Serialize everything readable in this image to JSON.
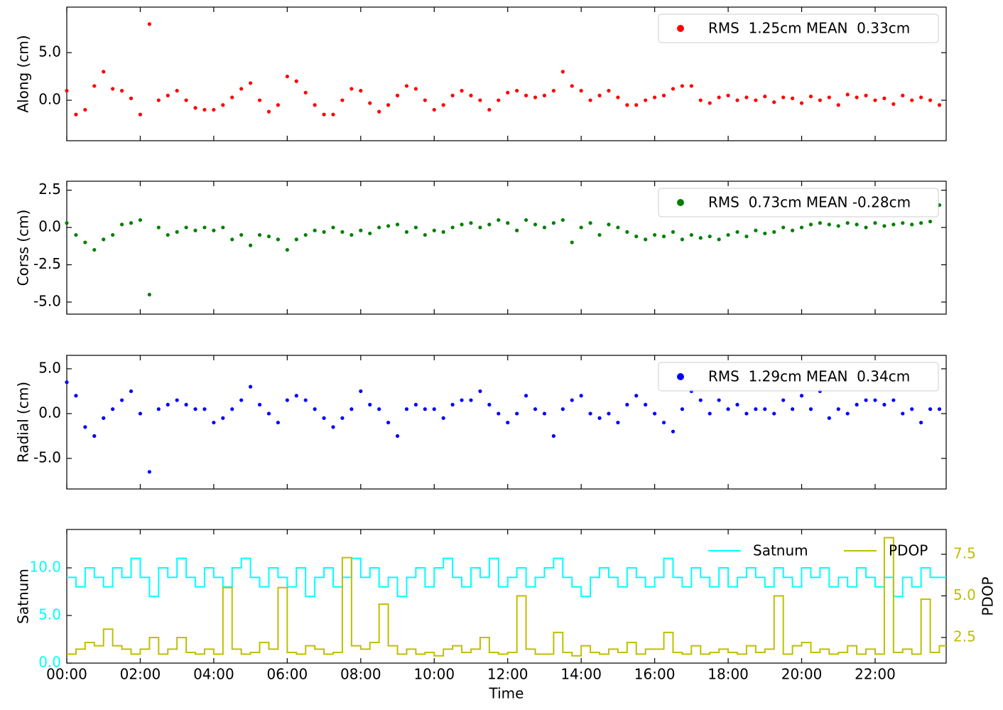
{
  "chart_data": [
    {
      "type": "scatter",
      "ylabel": "Along (cm)",
      "x": [
        0,
        15,
        30,
        45,
        60,
        75,
        90,
        105,
        120,
        135,
        150,
        165,
        180,
        195,
        210,
        225,
        240,
        255,
        270,
        285,
        300,
        315,
        330,
        345,
        360,
        375,
        390,
        405,
        420,
        435,
        450,
        465,
        480,
        495,
        510,
        525,
        540,
        555,
        570,
        585,
        600,
        615,
        630,
        645,
        660,
        675,
        690,
        705,
        720,
        735,
        750,
        765,
        780,
        795,
        810,
        825,
        840,
        855,
        870,
        885,
        900,
        915,
        930,
        945,
        960,
        975,
        990,
        1005,
        1020,
        1035,
        1050,
        1065,
        1080,
        1095,
        1110,
        1125,
        1140,
        1155,
        1170,
        1185,
        1200,
        1215,
        1230,
        1245,
        1260,
        1275,
        1290,
        1305,
        1320,
        1335,
        1350,
        1365,
        1380,
        1395,
        1410,
        1425
      ],
      "xlim": [
        0,
        1436
      ],
      "xticks": [
        0,
        120,
        240,
        360,
        480,
        600,
        720,
        840,
        960,
        1080,
        1200,
        1320
      ],
      "ylim": [
        -4.25,
        9.78
      ],
      "yticks": [
        {
          "value": 0,
          "label": "0.0"
        },
        {
          "value": 5,
          "label": "5.0"
        }
      ],
      "series": [
        {
          "name": "RMS  1.25cm MEAN  0.33cm",
          "color": "#ff0000",
          "values": [
            1.0,
            -1.5,
            -1.0,
            1.5,
            3.0,
            1.2,
            1.0,
            0.2,
            -1.5,
            8.0,
            0.0,
            0.5,
            1.0,
            0.0,
            -0.8,
            -1.0,
            -1.0,
            -0.5,
            0.3,
            1.2,
            1.8,
            0.0,
            -1.2,
            -0.5,
            2.5,
            2.0,
            0.8,
            -0.5,
            -1.5,
            -1.5,
            0.0,
            1.2,
            1.0,
            -0.3,
            -1.2,
            -0.5,
            0.5,
            1.5,
            1.2,
            0.0,
            -1.0,
            -0.5,
            0.5,
            1.0,
            0.5,
            0.0,
            -1.0,
            0.0,
            0.8,
            1.0,
            0.5,
            0.3,
            0.5,
            1.0,
            3.0,
            1.5,
            1.0,
            0.0,
            0.5,
            1.0,
            0.3,
            -0.5,
            -0.5,
            0.0,
            0.3,
            0.5,
            1.2,
            1.5,
            1.5,
            0.0,
            -0.3,
            0.3,
            0.5,
            0.0,
            0.3,
            0.0,
            0.4,
            -0.2,
            0.3,
            0.2,
            -0.3,
            0.4,
            0.0,
            0.3,
            -0.5,
            0.6,
            0.3,
            0.5,
            0.0,
            0.2,
            -0.4,
            0.5,
            0.0,
            0.3,
            0.0,
            -0.5
          ]
        }
      ]
    },
    {
      "type": "scatter",
      "ylabel": "Corss (cm)",
      "x": [
        0,
        15,
        30,
        45,
        60,
        75,
        90,
        105,
        120,
        135,
        150,
        165,
        180,
        195,
        210,
        225,
        240,
        255,
        270,
        285,
        300,
        315,
        330,
        345,
        360,
        375,
        390,
        405,
        420,
        435,
        450,
        465,
        480,
        495,
        510,
        525,
        540,
        555,
        570,
        585,
        600,
        615,
        630,
        645,
        660,
        675,
        690,
        705,
        720,
        735,
        750,
        765,
        780,
        795,
        810,
        825,
        840,
        855,
        870,
        885,
        900,
        915,
        930,
        945,
        960,
        975,
        990,
        1005,
        1020,
        1035,
        1050,
        1065,
        1080,
        1095,
        1110,
        1125,
        1140,
        1155,
        1170,
        1185,
        1200,
        1215,
        1230,
        1245,
        1260,
        1275,
        1290,
        1305,
        1320,
        1335,
        1350,
        1365,
        1380,
        1395,
        1410,
        1425
      ],
      "xlim": [
        0,
        1436
      ],
      "xticks": [
        0,
        120,
        240,
        360,
        480,
        600,
        720,
        840,
        960,
        1080,
        1200,
        1320
      ],
      "ylim": [
        -5.81,
        3.1
      ],
      "yticks": [
        {
          "value": -5,
          "label": "-5.0"
        },
        {
          "value": -2.5,
          "label": "-2.5"
        },
        {
          "value": 0,
          "label": "0.0"
        },
        2.5
      ],
      "series": [
        {
          "name": "RMS  0.73cm MEAN -0.28cm",
          "color": "#008000",
          "values": [
            0.3,
            -0.5,
            -1.0,
            -1.5,
            -0.8,
            -0.5,
            0.2,
            0.3,
            0.5,
            -4.5,
            0.0,
            -0.5,
            -0.3,
            0.0,
            -0.2,
            0.0,
            -0.2,
            0.0,
            -0.8,
            -0.5,
            -1.2,
            -0.5,
            -0.6,
            -0.8,
            -1.5,
            -0.8,
            -0.5,
            -0.2,
            -0.3,
            0.0,
            -0.3,
            -0.5,
            -0.2,
            -0.4,
            0.0,
            0.1,
            0.2,
            -0.3,
            0.0,
            -0.5,
            -0.2,
            -0.3,
            0.0,
            0.2,
            0.3,
            0.0,
            0.2,
            0.5,
            0.3,
            -0.2,
            0.5,
            0.2,
            0.0,
            0.3,
            0.5,
            -1.0,
            0.0,
            0.3,
            -0.5,
            0.2,
            0.0,
            -0.3,
            -0.6,
            -0.8,
            -0.5,
            -0.6,
            -0.3,
            -0.8,
            -0.5,
            -0.7,
            -0.6,
            -0.8,
            -0.5,
            -0.3,
            -0.6,
            -0.2,
            -0.4,
            -0.3,
            0.0,
            -0.2,
            0.0,
            0.2,
            0.3,
            0.2,
            0.1,
            0.3,
            0.2,
            0.0,
            0.3,
            0.1,
            0.2,
            0.3,
            0.2,
            0.3,
            0.4,
            1.5
          ]
        }
      ]
    },
    {
      "type": "scatter",
      "ylabel": "Radial (cm)",
      "x": [
        0,
        15,
        30,
        45,
        60,
        75,
        90,
        105,
        120,
        135,
        150,
        165,
        180,
        195,
        210,
        225,
        240,
        255,
        270,
        285,
        300,
        315,
        330,
        345,
        360,
        375,
        390,
        405,
        420,
        435,
        450,
        465,
        480,
        495,
        510,
        525,
        540,
        555,
        570,
        585,
        600,
        615,
        630,
        645,
        660,
        675,
        690,
        705,
        720,
        735,
        750,
        765,
        780,
        795,
        810,
        825,
        840,
        855,
        870,
        885,
        900,
        915,
        930,
        945,
        960,
        975,
        990,
        1005,
        1020,
        1035,
        1050,
        1065,
        1080,
        1095,
        1110,
        1125,
        1140,
        1155,
        1170,
        1185,
        1200,
        1215,
        1230,
        1245,
        1260,
        1275,
        1290,
        1305,
        1320,
        1335,
        1350,
        1365,
        1380,
        1395,
        1410,
        1425
      ],
      "xlim": [
        0,
        1436
      ],
      "xticks": [
        0,
        120,
        240,
        360,
        480,
        600,
        720,
        840,
        960,
        1080,
        1200,
        1320
      ],
      "ylim": [
        -8.41,
        6.5
      ],
      "yticks": [
        {
          "value": -5,
          "label": "-5.0"
        },
        {
          "value": 0,
          "label": "0.0"
        },
        {
          "value": 5,
          "label": "5.0"
        }
      ],
      "series": [
        {
          "name": "RMS  1.29cm MEAN  0.34cm",
          "color": "#0000ff",
          "values": [
            3.5,
            2.0,
            -1.5,
            -2.5,
            -0.5,
            0.5,
            1.5,
            2.5,
            0.0,
            -6.5,
            0.5,
            1.0,
            1.5,
            1.0,
            0.5,
            0.5,
            -1.0,
            -0.5,
            0.5,
            1.5,
            3.0,
            1.0,
            0.0,
            -1.0,
            1.5,
            2.0,
            1.5,
            0.5,
            -0.5,
            -1.5,
            -0.5,
            0.5,
            2.5,
            1.0,
            0.5,
            -1.0,
            -2.5,
            0.5,
            1.0,
            0.5,
            0.5,
            -0.5,
            1.0,
            1.5,
            1.5,
            2.5,
            1.0,
            0.0,
            -1.0,
            0.0,
            2.0,
            0.5,
            0.0,
            -2.5,
            0.5,
            1.5,
            2.0,
            0.0,
            -0.5,
            0.0,
            -1.0,
            1.0,
            2.0,
            1.0,
            0.0,
            -1.0,
            -2.0,
            0.5,
            2.5,
            1.5,
            0.0,
            1.5,
            0.5,
            1.0,
            0.0,
            0.5,
            0.5,
            0.0,
            1.5,
            0.5,
            2.0,
            0.5,
            2.5,
            -0.5,
            0.5,
            0.0,
            1.0,
            1.5,
            1.5,
            1.0,
            1.5,
            0.0,
            0.5,
            -1.0,
            0.5,
            0.5
          ]
        }
      ]
    },
    {
      "type": "line",
      "step": true,
      "xlabel": "Time",
      "ylabel": "Satnum",
      "y2label": "PDOP",
      "x": [
        0,
        15,
        30,
        45,
        60,
        75,
        90,
        105,
        120,
        135,
        150,
        165,
        180,
        195,
        210,
        225,
        240,
        255,
        270,
        285,
        300,
        315,
        330,
        345,
        360,
        375,
        390,
        405,
        420,
        435,
        450,
        465,
        480,
        495,
        510,
        525,
        540,
        555,
        570,
        585,
        600,
        615,
        630,
        645,
        660,
        675,
        690,
        705,
        720,
        735,
        750,
        765,
        780,
        795,
        810,
        825,
        840,
        855,
        870,
        885,
        900,
        915,
        930,
        945,
        960,
        975,
        990,
        1005,
        1020,
        1035,
        1050,
        1065,
        1080,
        1095,
        1110,
        1125,
        1140,
        1155,
        1170,
        1185,
        1200,
        1215,
        1230,
        1245,
        1260,
        1275,
        1290,
        1305,
        1320,
        1335,
        1350,
        1365,
        1380,
        1395,
        1410,
        1425
      ],
      "xlim": [
        0,
        1436
      ],
      "xticks": [
        {
          "value": 0,
          "label": "00:00"
        },
        {
          "value": 120,
          "label": "02:00"
        },
        {
          "value": 240,
          "label": "04:00"
        },
        {
          "value": 360,
          "label": "06:00"
        },
        {
          "value": 480,
          "label": "08:00"
        },
        {
          "value": 600,
          "label": "10:00"
        },
        {
          "value": 720,
          "label": "12:00"
        },
        {
          "value": 840,
          "label": "14:00"
        },
        {
          "value": 960,
          "label": "16:00"
        },
        {
          "value": 1080,
          "label": "18:00"
        },
        {
          "value": 1200,
          "label": "20:00"
        },
        {
          "value": 1320,
          "label": "22:00"
        }
      ],
      "ylim": [
        0,
        14.03
      ],
      "yticks": [
        {
          "value": 0,
          "label": "0.0"
        },
        {
          "value": 5,
          "label": "5.0"
        },
        {
          "value": 10,
          "label": "10.0"
        }
      ],
      "y2lim": [
        0.96,
        8.99
      ],
      "y2ticks": [
        2.5,
        {
          "value": 5,
          "label": "5.0"
        },
        7.5
      ],
      "series": [
        {
          "name": "Satnum",
          "color": "#00ffff",
          "values": [
            9,
            8,
            10,
            9,
            8,
            10,
            9,
            11,
            9,
            7,
            10,
            9,
            11,
            9,
            8,
            10,
            9,
            8,
            10,
            11,
            9,
            8,
            10,
            9,
            8,
            10,
            7,
            9,
            10,
            8,
            9,
            11,
            9,
            10,
            8,
            9,
            7,
            9,
            10,
            8,
            10,
            11,
            9,
            8,
            10,
            9,
            11,
            8,
            9,
            10,
            8,
            9,
            10,
            11,
            9,
            8,
            7,
            9,
            10,
            9,
            8,
            10,
            9,
            8,
            9,
            11,
            9,
            8,
            10,
            9,
            8,
            10,
            8,
            9,
            10,
            9,
            8,
            10,
            9,
            8,
            10,
            9,
            10,
            8,
            9,
            8,
            10,
            9,
            8,
            9,
            7,
            9,
            8,
            10,
            9,
            9
          ]
        },
        {
          "name": "PDOP",
          "color": "#bfbf00",
          "axis": "y2",
          "values": [
            1.5,
            1.8,
            2.2,
            2.0,
            3.0,
            2.0,
            1.8,
            1.5,
            1.8,
            2.5,
            1.5,
            1.8,
            2.5,
            1.6,
            1.5,
            1.8,
            1.5,
            5.5,
            1.8,
            1.5,
            1.6,
            2.2,
            1.8,
            5.5,
            1.6,
            1.5,
            2.0,
            1.8,
            1.5,
            1.6,
            7.3,
            2.0,
            1.8,
            2.2,
            4.5,
            2.0,
            1.5,
            1.8,
            1.5,
            1.6,
            1.4,
            1.8,
            2.0,
            1.6,
            1.8,
            2.5,
            1.6,
            1.5,
            1.6,
            5.0,
            1.8,
            1.5,
            1.5,
            2.8,
            1.6,
            1.4,
            2.0,
            1.6,
            1.5,
            1.8,
            1.6,
            2.2,
            1.5,
            1.8,
            1.8,
            2.8,
            1.6,
            1.5,
            2.0,
            1.5,
            1.6,
            1.8,
            1.6,
            1.5,
            2.0,
            1.6,
            1.8,
            5.0,
            1.5,
            2.0,
            2.2,
            1.6,
            1.8,
            1.5,
            1.6,
            2.0,
            1.5,
            1.8,
            1.5,
            8.5,
            1.6,
            1.8,
            1.5,
            4.8,
            1.6,
            2.0
          ]
        }
      ]
    }
  ]
}
